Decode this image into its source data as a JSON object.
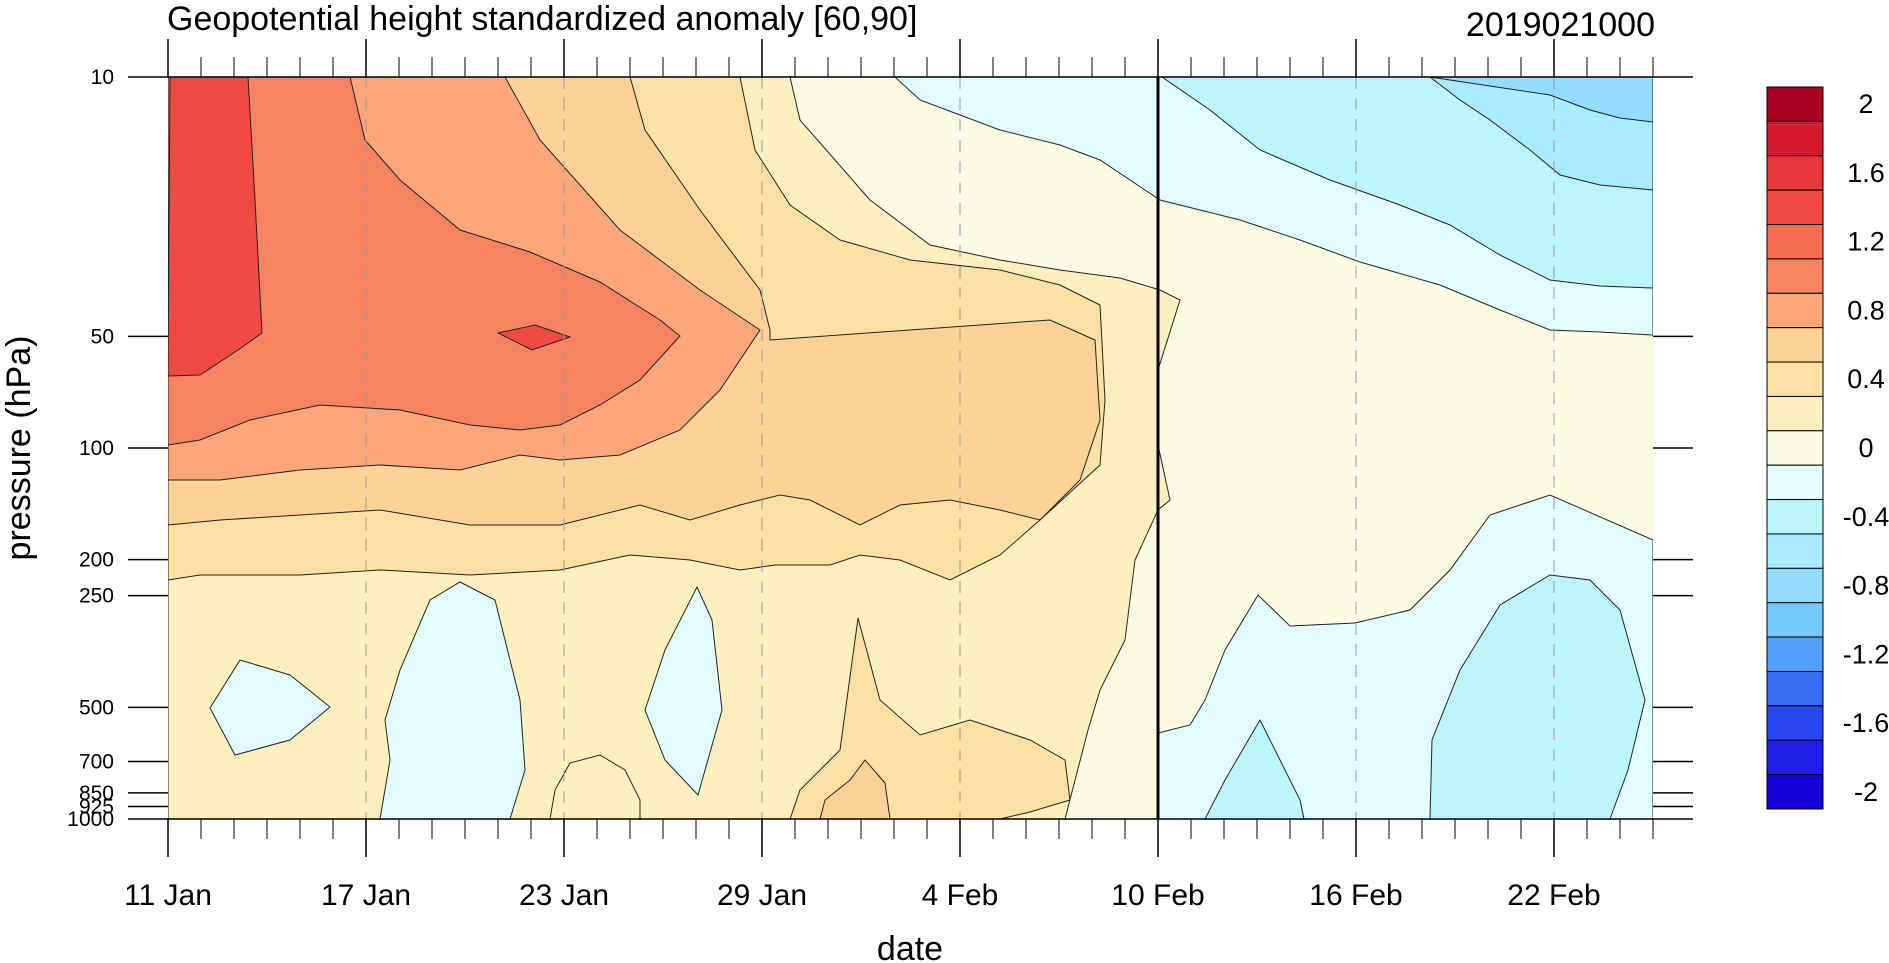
{
  "chart_data": {
    "type": "heatmap",
    "title": "Geopotential height standardized anomaly [60,90]",
    "date_stamp": "2019021000",
    "xlabel": "date",
    "ylabel": "pressure (hPa)",
    "x_tick_labels": [
      "11 Jan",
      "17 Jan",
      "23 Jan",
      "29 Jan",
      "4 Feb",
      "10 Feb",
      "16 Feb",
      "22 Feb"
    ],
    "x_tick_days": [
      0,
      6,
      12,
      18,
      24,
      30,
      36,
      42
    ],
    "x_range_days": [
      0,
      45
    ],
    "forecast_start_day": 30,
    "y_tick_labels": [
      "10",
      "50",
      "100",
      "200",
      "250",
      "500",
      "700",
      "850",
      "925",
      "1000"
    ],
    "y_tick_values": [
      10,
      50,
      100,
      200,
      250,
      500,
      700,
      850,
      925,
      1000
    ],
    "y_range": [
      10,
      1000
    ],
    "y_scale": "log-reversed",
    "grid_x": true,
    "colorbar": {
      "placement": "right",
      "levels": [
        -2,
        -1.8,
        -1.6,
        -1.4,
        -1.2,
        -1,
        -0.8,
        -0.6,
        -0.4,
        -0.2,
        0,
        0.2,
        0.4,
        0.6,
        0.8,
        1,
        1.2,
        1.4,
        1.6,
        1.8,
        2
      ],
      "tick_labels": [
        "-2",
        "-1.6",
        "-1.2",
        "-0.8",
        "-0.4",
        "0",
        "0.4",
        "0.8",
        "1.2",
        "1.6",
        "2"
      ],
      "colors": [
        "#1400d6",
        "#1e1ee6",
        "#2a46ef",
        "#3a6cf6",
        "#55a0f9",
        "#75c8fb",
        "#92dcfd",
        "#a8ecfd",
        "#bdf5fe",
        "#e1fdfe",
        "#fefbe4",
        "#fdf0be",
        "#fde0a4",
        "#fdd297",
        "#fba67a",
        "#f78362",
        "#f56c52",
        "#ef4b44",
        "#e63a3a",
        "#d2192f",
        "#a90020"
      ]
    },
    "key_points": [
      {
        "date": "11 Jan",
        "pressure": 50,
        "value": 1.7
      },
      {
        "date": "23 Jan",
        "pressure": 50,
        "value": 1.4
      },
      {
        "date": "29 Jan",
        "pressure": 70,
        "value": 0.7
      },
      {
        "date": "10 Feb",
        "pressure": 70,
        "value": 0.6
      },
      {
        "date": "22 Feb",
        "pressure": 20,
        "value": -0.5
      },
      {
        "date": "20 Jan",
        "pressure": 400,
        "value": -0.1
      },
      {
        "date": "22 Feb",
        "pressure": 600,
        "value": -0.3
      }
    ]
  }
}
